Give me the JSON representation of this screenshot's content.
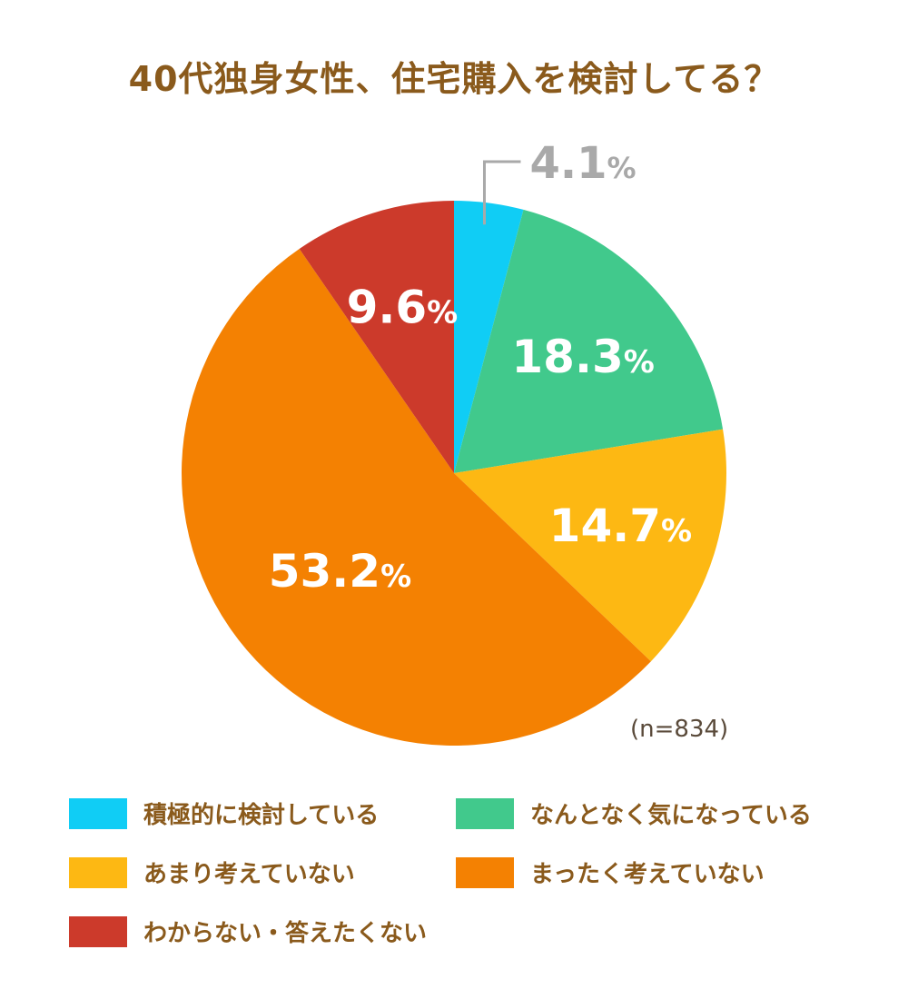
{
  "chart_data": {
    "type": "pie",
    "title": "40代独身女性、住宅購入を検討してる？",
    "note": "(n=834)",
    "unit": "%",
    "slices": [
      {
        "name": "積極的に検討している",
        "value": 4.1,
        "color": "#10cdf5",
        "label_position": "outside"
      },
      {
        "name": "なんとなく気になっている",
        "value": 18.3,
        "color": "#41c98c",
        "label_position": "inside"
      },
      {
        "name": "あまり考えていない",
        "value": 14.7,
        "color": "#fdb813",
        "label_position": "inside"
      },
      {
        "name": "まったく考えていない",
        "value": 53.2,
        "color": "#f48102",
        "label_position": "inside"
      },
      {
        "name": "わからない・答えたくない",
        "value": 9.6,
        "color": "#cc3a2b",
        "label_position": "inside"
      }
    ],
    "legend_placement": "bottom",
    "legend_order": [
      0,
      1,
      2,
      3,
      4
    ]
  }
}
